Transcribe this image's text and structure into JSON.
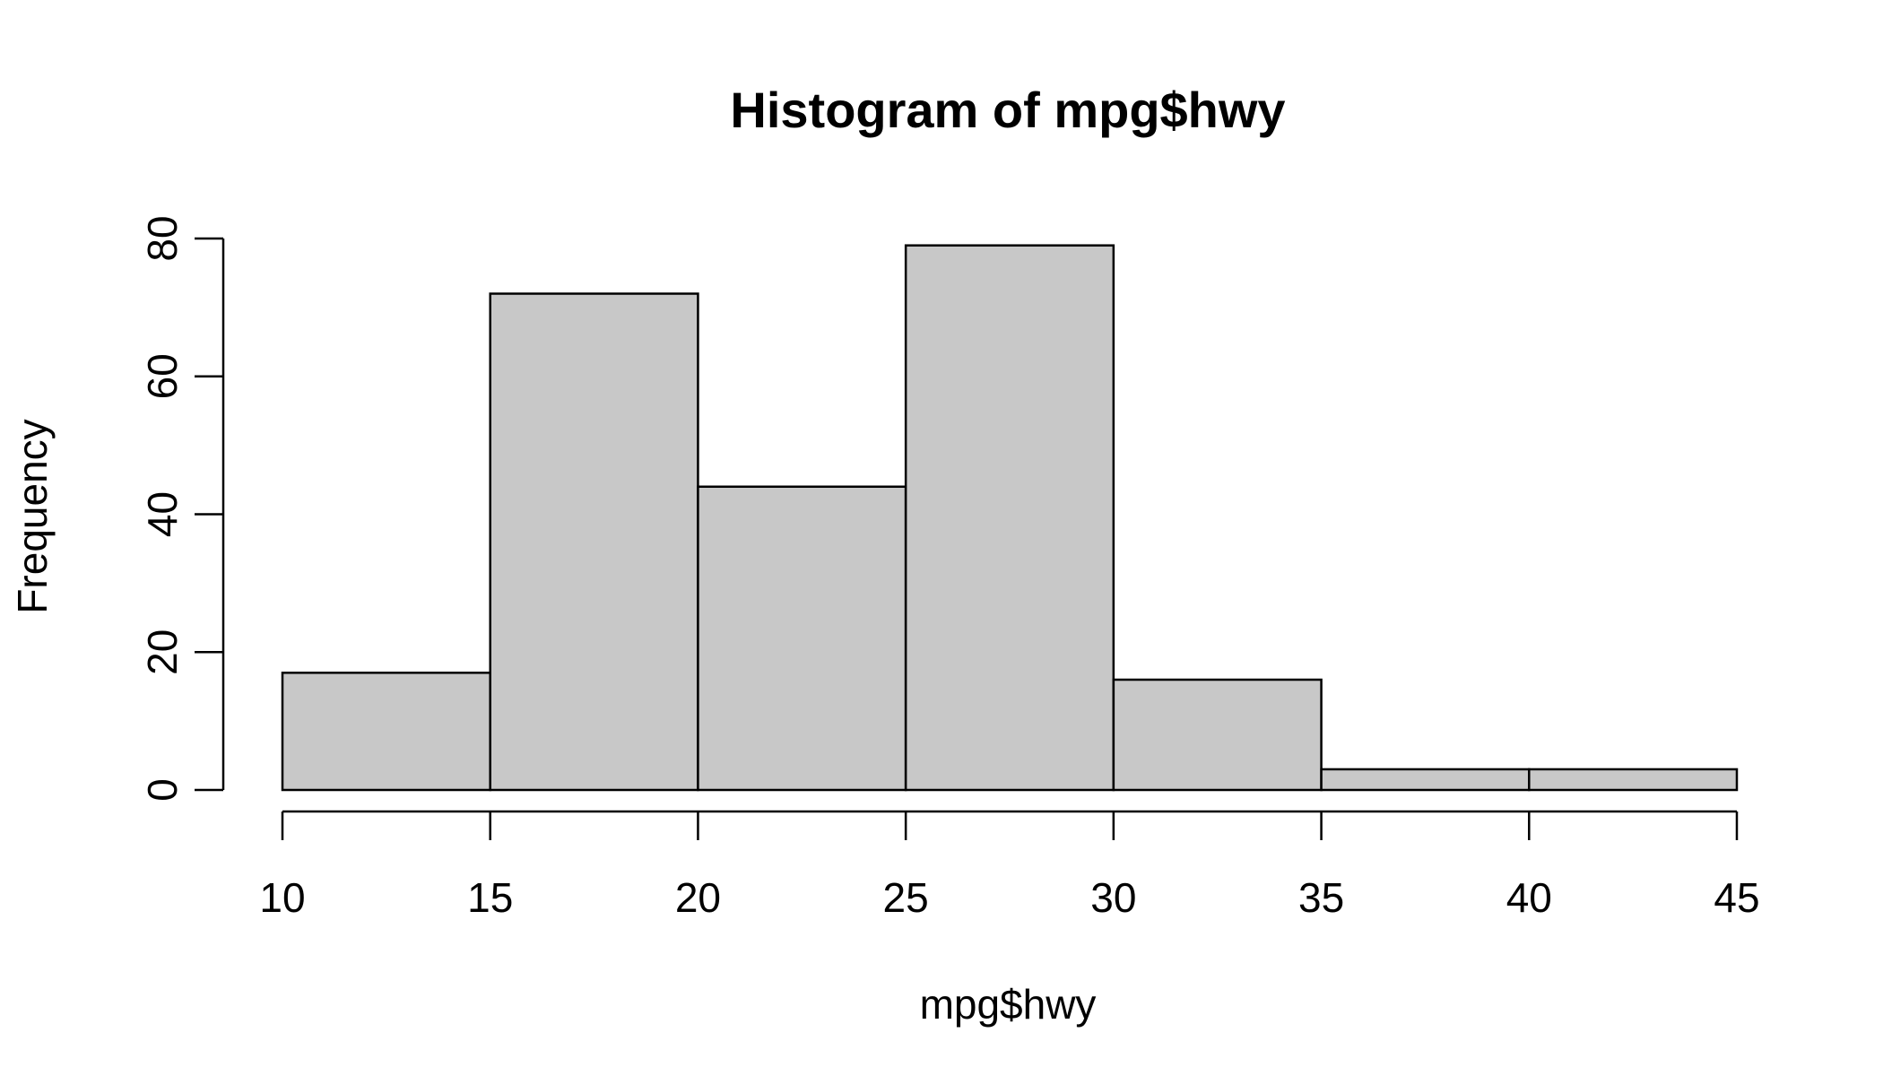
{
  "chart_data": {
    "type": "bar",
    "subtype": "histogram",
    "title": "Histogram of mpg$hwy",
    "xlabel": "mpg$hwy",
    "ylabel": "Frequency",
    "bins": [
      {
        "start": 10,
        "end": 15,
        "count": 17
      },
      {
        "start": 15,
        "end": 20,
        "count": 72
      },
      {
        "start": 20,
        "end": 25,
        "count": 44
      },
      {
        "start": 25,
        "end": 30,
        "count": 79
      },
      {
        "start": 30,
        "end": 35,
        "count": 16
      },
      {
        "start": 35,
        "end": 40,
        "count": 3
      },
      {
        "start": 40,
        "end": 45,
        "count": 3
      }
    ],
    "xlim": [
      10,
      45
    ],
    "ylim": [
      0,
      80
    ],
    "x_ticks": [
      10,
      15,
      20,
      25,
      30,
      35,
      40,
      45
    ],
    "y_ticks": [
      0,
      20,
      40,
      60,
      80
    ],
    "grid": false,
    "bar_color": "#c8c8c8",
    "edge_color": "#000000"
  }
}
